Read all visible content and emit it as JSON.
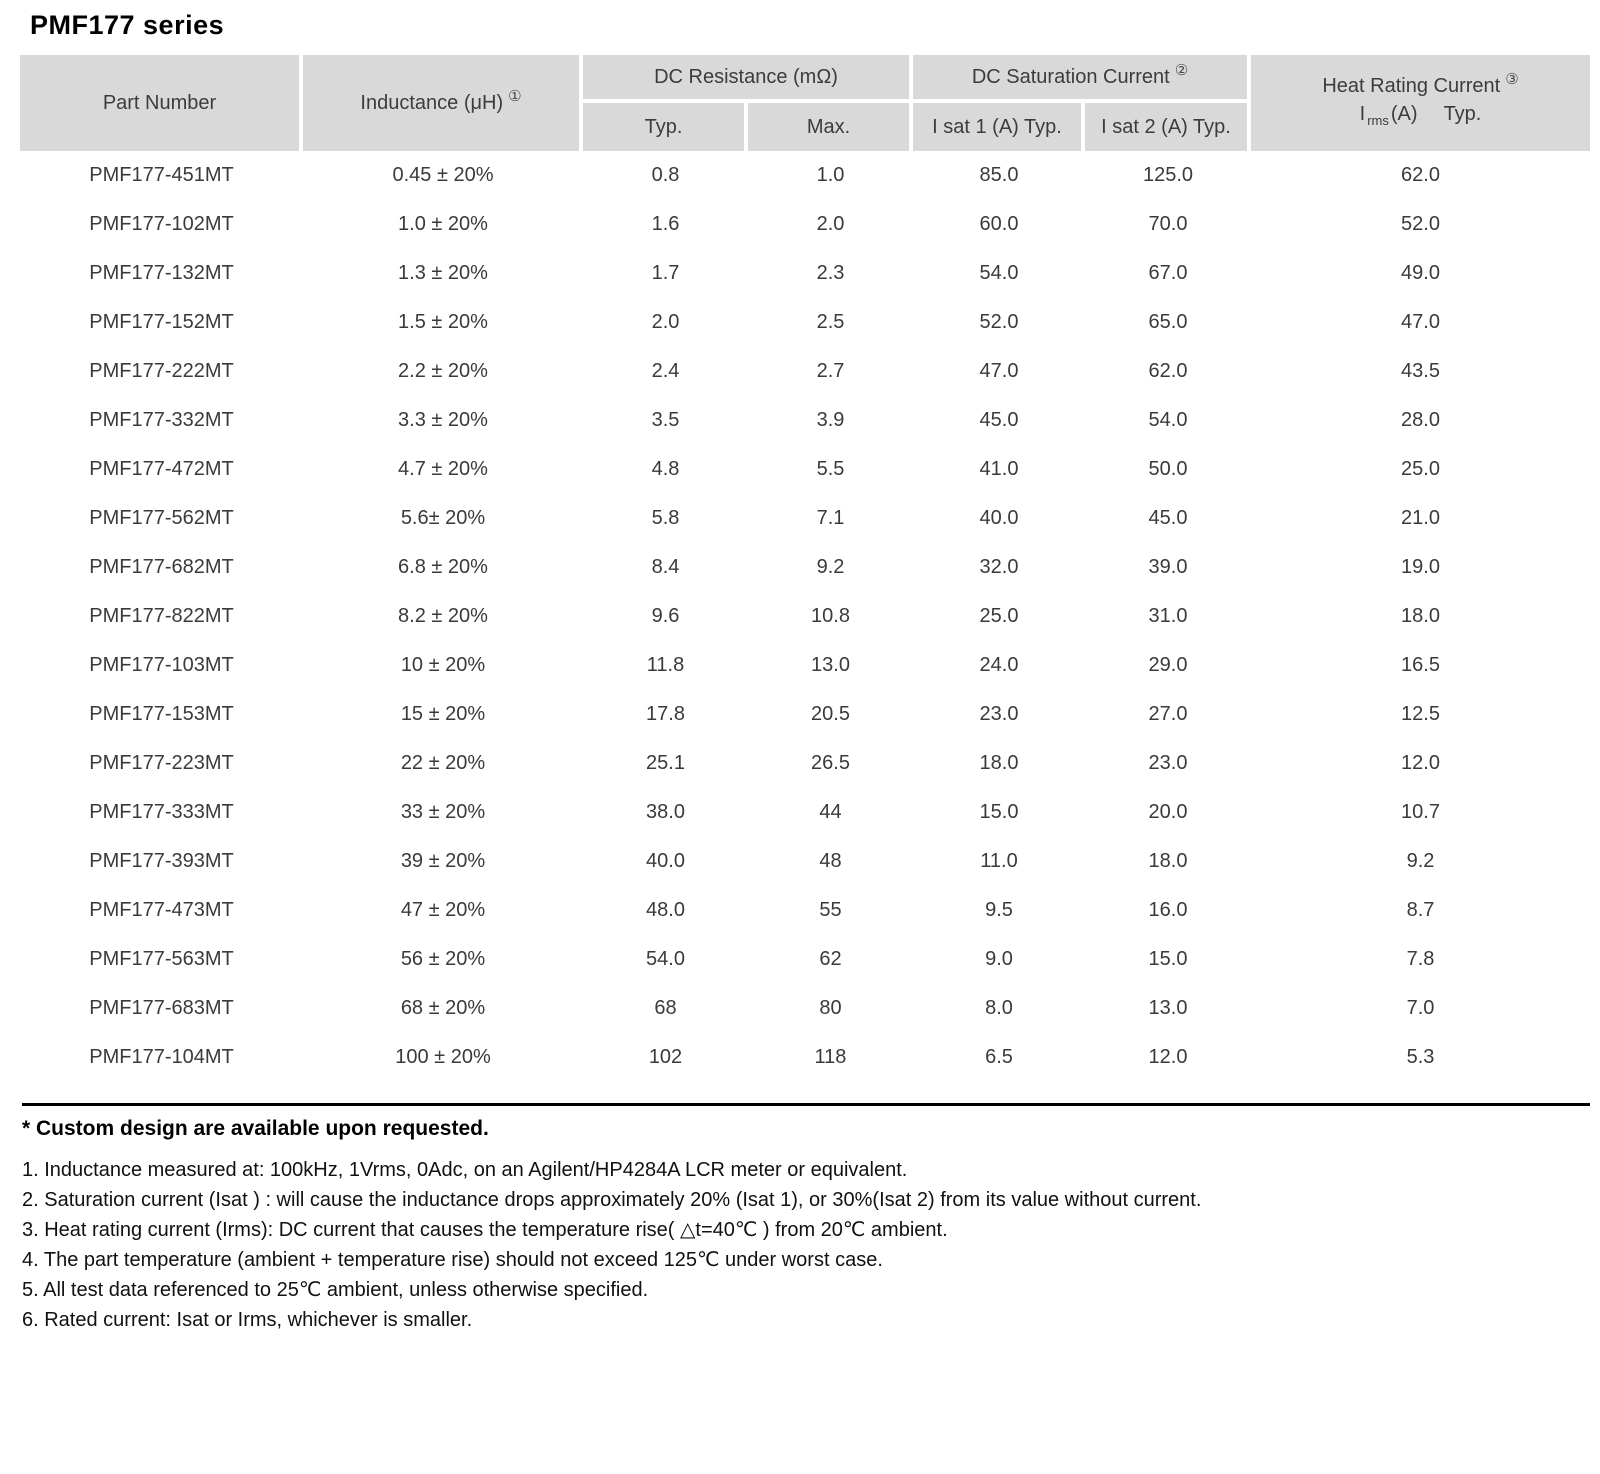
{
  "title": "PMF177 series",
  "colors": {
    "header_bg": "#d9d9d9",
    "body_text": "#3a3a3a",
    "rule": "#000000"
  },
  "table": {
    "headers": {
      "part_number": "Part Number",
      "inductance": "Inductance (μH)",
      "inductance_note": "①",
      "dc_resistance": "DC Resistance (mΩ)",
      "dcr_typ": "Typ.",
      "dcr_max": "Max.",
      "dc_saturation": "DC Saturation Current",
      "dc_saturation_note": "②",
      "isat1": "I sat 1  (A)  Typ.",
      "isat2": "I sat 2  (A)  Typ.",
      "heat_rating": "Heat Rating Current",
      "heat_rating_note": "③",
      "heat_i": "I",
      "heat_rms": "rms",
      "heat_unit": "(A)",
      "heat_typ": "Typ."
    },
    "rows": [
      [
        "PMF177-451MT",
        "0.45 ± 20%",
        "0.8",
        "1.0",
        "85.0",
        "125.0",
        "62.0"
      ],
      [
        "PMF177-102MT",
        "1.0 ± 20%",
        "1.6",
        "2.0",
        "60.0",
        "70.0",
        "52.0"
      ],
      [
        "PMF177-132MT",
        "1.3 ± 20%",
        "1.7",
        "2.3",
        "54.0",
        "67.0",
        "49.0"
      ],
      [
        "PMF177-152MT",
        "1.5 ± 20%",
        "2.0",
        "2.5",
        "52.0",
        "65.0",
        "47.0"
      ],
      [
        "PMF177-222MT",
        "2.2 ± 20%",
        "2.4",
        "2.7",
        "47.0",
        "62.0",
        "43.5"
      ],
      [
        "PMF177-332MT",
        "3.3 ± 20%",
        "3.5",
        "3.9",
        "45.0",
        "54.0",
        "28.0"
      ],
      [
        "PMF177-472MT",
        "4.7 ± 20%",
        "4.8",
        "5.5",
        "41.0",
        "50.0",
        "25.0"
      ],
      [
        "PMF177-562MT",
        "5.6± 20%",
        "5.8",
        "7.1",
        "40.0",
        "45.0",
        "21.0"
      ],
      [
        "PMF177-682MT",
        "6.8 ± 20%",
        "8.4",
        "9.2",
        "32.0",
        "39.0",
        "19.0"
      ],
      [
        "PMF177-822MT",
        "8.2 ± 20%",
        "9.6",
        "10.8",
        "25.0",
        "31.0",
        "18.0"
      ],
      [
        "PMF177-103MT",
        "10 ± 20%",
        "11.8",
        "13.0",
        "24.0",
        "29.0",
        "16.5"
      ],
      [
        "PMF177-153MT",
        "15 ± 20%",
        "17.8",
        "20.5",
        "23.0",
        "27.0",
        "12.5"
      ],
      [
        "PMF177-223MT",
        "22 ± 20%",
        "25.1",
        "26.5",
        "18.0",
        "23.0",
        "12.0"
      ],
      [
        "PMF177-333MT",
        "33 ± 20%",
        "38.0",
        "44",
        "15.0",
        "20.0",
        "10.7"
      ],
      [
        "PMF177-393MT",
        "39 ± 20%",
        "40.0",
        "48",
        "11.0",
        "18.0",
        "9.2"
      ],
      [
        "PMF177-473MT",
        "47 ± 20%",
        "48.0",
        "55",
        "9.5",
        "16.0",
        "8.7"
      ],
      [
        "PMF177-563MT",
        "56 ± 20%",
        "54.0",
        "62",
        "9.0",
        "15.0",
        "7.8"
      ],
      [
        "PMF177-683MT",
        "68 ± 20%",
        "68",
        "80",
        "8.0",
        "13.0",
        "7.0"
      ],
      [
        "PMF177-104MT",
        "100 ± 20%",
        "102",
        "118",
        "6.5",
        "12.0",
        "5.3"
      ]
    ]
  },
  "footer": {
    "custom_note": "* Custom design are available upon requested.",
    "notes": [
      "1. Inductance measured at: 100kHz, 1Vrms, 0Adc, on an Agilent/HP4284A LCR meter or equivalent.",
      "2. Saturation current (Isat ) : will cause the inductance drops approximately 20% (Isat 1), or 30%(Isat 2) from its value without current.",
      "3. Heat rating current (Irms): DC current that causes the temperature rise( △t=40℃ ) from 20℃  ambient.",
      "4. The part temperature (ambient + temperature rise) should not exceed 125℃ under worst case.",
      "5. All test data referenced to 25℃  ambient, unless otherwise specified.",
      "6. Rated current: Isat or Irms, whichever is smaller."
    ]
  }
}
